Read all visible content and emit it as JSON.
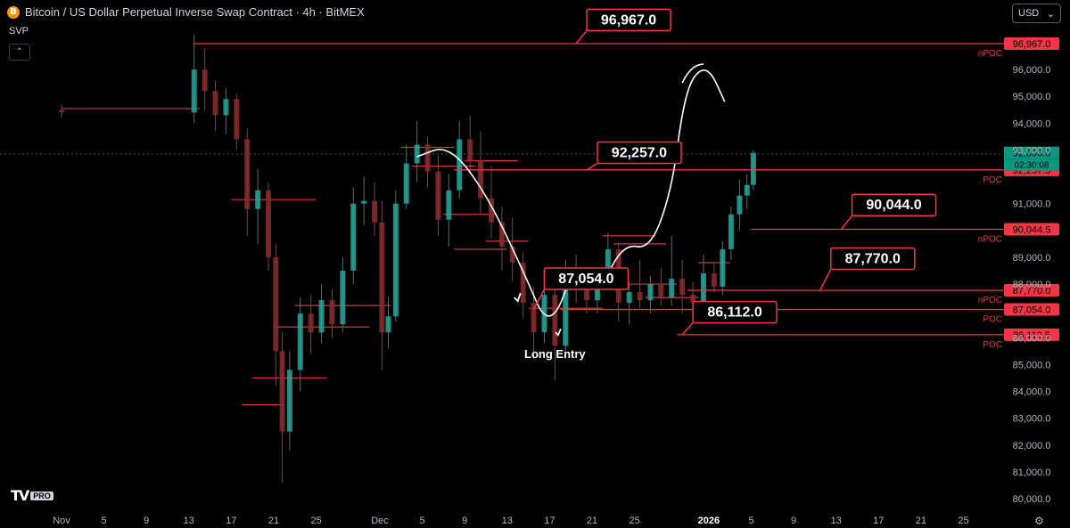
{
  "header": {
    "coin_symbol": "B",
    "title": "Bitcoin / US Dollar Perpetual Inverse Swap Contract · 4h · BitMEX",
    "indicator": "SVP",
    "collapse_icon": "chevron-up-icon",
    "currency": "USD",
    "currency_icon": "chevron-down-icon"
  },
  "logo": {
    "mark": "TV",
    "badge": "PRO"
  },
  "settings_icon": "gear-icon",
  "colors": {
    "background": "#000000",
    "level_line": "#f23645",
    "level_label_bg": "#f23645",
    "price_tag_bg": "#089981",
    "annotation": "#ffffff",
    "axis_text": "#b2b5be"
  },
  "chart_data": {
    "type": "candlestick",
    "symbol": "Bitcoin / US Dollar Perpetual Inverse Swap Contract",
    "timeframe": "4h",
    "exchange": "BitMEX",
    "ylim": [
      79700,
      97500
    ],
    "x_range_days": [
      0,
      88
    ],
    "yaxis_ticks": [
      "96,000.0",
      "95,000.0",
      "94,000.0",
      "93,000.0",
      "91,000.0",
      "89,000.0",
      "88,000.0",
      "86,000.0",
      "85,000.0",
      "84,000.0",
      "83,000.0",
      "82,000.0",
      "81,000.0",
      "80,000.0"
    ],
    "xaxis_ticks": [
      {
        "day": 0,
        "label": "Nov"
      },
      {
        "day": 4,
        "label": "5"
      },
      {
        "day": 8,
        "label": "9"
      },
      {
        "day": 12,
        "label": "13"
      },
      {
        "day": 16,
        "label": "17"
      },
      {
        "day": 20,
        "label": "21"
      },
      {
        "day": 24,
        "label": "25"
      },
      {
        "day": 30,
        "label": "Dec"
      },
      {
        "day": 34,
        "label": "5"
      },
      {
        "day": 38,
        "label": "9"
      },
      {
        "day": 42,
        "label": "13"
      },
      {
        "day": 46,
        "label": "17"
      },
      {
        "day": 50,
        "label": "21"
      },
      {
        "day": 54,
        "label": "25"
      },
      {
        "day": 61,
        "label": "2026"
      },
      {
        "day": 65,
        "label": "5"
      },
      {
        "day": 69,
        "label": "9"
      },
      {
        "day": 73,
        "label": "13"
      },
      {
        "day": 77,
        "label": "17"
      },
      {
        "day": 81,
        "label": "21"
      },
      {
        "day": 85,
        "label": "25"
      }
    ],
    "last_price": {
      "value": 92893.0,
      "label": "92,893.0",
      "countdown": "02:30:08"
    },
    "levels": [
      {
        "price": 96967.0,
        "label": "96,967.0",
        "tag": "nPOC",
        "callout": "96,967.0",
        "callout_day": 49.5,
        "callout_price": 97850,
        "from_day": 12.5
      },
      {
        "price": 92257.5,
        "label": "92,257.5",
        "tag": "POC",
        "callout": "92,257.0",
        "callout_day": 50.5,
        "callout_price": 92900,
        "from_day": 37
      },
      {
        "price": 90044.5,
        "label": "90,044.5",
        "tag": "nPOC",
        "callout": "90,044.0",
        "callout_day": 74.5,
        "callout_price": 90950,
        "from_day": 65
      },
      {
        "price": 87770.0,
        "label": "87,770.0",
        "tag": "nPOC",
        "callout": "87,770.0",
        "callout_day": 72.5,
        "callout_price": 88950,
        "from_day": 59
      },
      {
        "price": 87054.0,
        "label": "87,054.0",
        "tag": "POC",
        "callout": "87,054.0",
        "callout_day": 45.5,
        "callout_price": 88200,
        "from_day": 47
      },
      {
        "price": 86112.5,
        "label": "86,112.5",
        "tag": "POC",
        "callout": "86,112.0",
        "callout_day": 59.5,
        "callout_price": 86950,
        "from_day": 58
      }
    ],
    "annotation": {
      "text": "Long Entry",
      "day": 46.5,
      "price": 85250
    },
    "projected_path": [
      {
        "day": 33.5,
        "price": 92750
      },
      {
        "day": 36.5,
        "price": 93200
      },
      {
        "day": 40,
        "price": 91400
      },
      {
        "day": 43.5,
        "price": 88500
      },
      {
        "day": 46,
        "price": 86200
      },
      {
        "day": 48.5,
        "price": 88800
      },
      {
        "day": 51,
        "price": 88000
      },
      {
        "day": 53,
        "price": 89500
      },
      {
        "day": 55.5,
        "price": 89300
      },
      {
        "day": 57.5,
        "price": 91500
      },
      {
        "day": 58.5,
        "price": 94500
      },
      {
        "day": 59.5,
        "price": 95800
      },
      {
        "day": 61,
        "price": 96100
      },
      {
        "day": 62.5,
        "price": 94800
      }
    ],
    "projected_path_piece": [
      {
        "day": 58.5,
        "price": 95500
      },
      {
        "day": 60.5,
        "price": 96200
      }
    ],
    "svp_blocks": [
      {
        "from_day": 0,
        "to_day": 13,
        "price": 94550
      },
      {
        "from_day": 16,
        "to_day": 24,
        "price": 91150
      },
      {
        "from_day": 22,
        "to_day": 31,
        "price": 87200
      },
      {
        "from_day": 20,
        "to_day": 29,
        "price": 86400
      },
      {
        "from_day": 18,
        "to_day": 25,
        "price": 84500
      },
      {
        "from_day": 17,
        "to_day": 21,
        "price": 83500
      },
      {
        "from_day": 32,
        "to_day": 37,
        "price": 93100
      },
      {
        "from_day": 33,
        "to_day": 39,
        "price": 92400
      },
      {
        "from_day": 38,
        "to_day": 43,
        "price": 92600
      },
      {
        "from_day": 36,
        "to_day": 41,
        "price": 90600
      },
      {
        "from_day": 37,
        "to_day": 42,
        "price": 89300
      },
      {
        "from_day": 40,
        "to_day": 44,
        "price": 89600
      },
      {
        "from_day": 51,
        "to_day": 56,
        "price": 89800
      },
      {
        "from_day": 52,
        "to_day": 57,
        "price": 89500
      },
      {
        "from_day": 53,
        "to_day": 58,
        "price": 88000
      },
      {
        "from_day": 55,
        "to_day": 60,
        "price": 87500
      },
      {
        "from_day": 44,
        "to_day": 51,
        "price": 87100
      },
      {
        "from_day": 60,
        "to_day": 63,
        "price": 88800
      }
    ],
    "candles": [
      {
        "day": 0,
        "o": 94500,
        "h": 94700,
        "l": 94200,
        "c": 94400
      },
      {
        "day": 12.5,
        "o": 94400,
        "h": 97300,
        "l": 94000,
        "c": 96000
      },
      {
        "day": 13.5,
        "o": 96000,
        "h": 96800,
        "l": 94500,
        "c": 95200
      },
      {
        "day": 14.5,
        "o": 95200,
        "h": 95600,
        "l": 93700,
        "c": 94300
      },
      {
        "day": 15.5,
        "o": 94300,
        "h": 95300,
        "l": 93600,
        "c": 94900
      },
      {
        "day": 16.5,
        "o": 94900,
        "h": 95100,
        "l": 93000,
        "c": 93400
      },
      {
        "day": 17.5,
        "o": 93400,
        "h": 93800,
        "l": 89800,
        "c": 90800
      },
      {
        "day": 18.5,
        "o": 90800,
        "h": 92300,
        "l": 89500,
        "c": 91500
      },
      {
        "day": 19.5,
        "o": 91500,
        "h": 91800,
        "l": 88500,
        "c": 89000
      },
      {
        "day": 20.2,
        "o": 89000,
        "h": 89500,
        "l": 84200,
        "c": 85500
      },
      {
        "day": 20.8,
        "o": 85500,
        "h": 86200,
        "l": 80600,
        "c": 82500
      },
      {
        "day": 21.5,
        "o": 82500,
        "h": 85500,
        "l": 81800,
        "c": 84800
      },
      {
        "day": 22.5,
        "o": 84800,
        "h": 87500,
        "l": 84000,
        "c": 86900
      },
      {
        "day": 23.5,
        "o": 86900,
        "h": 87600,
        "l": 85400,
        "c": 86200
      },
      {
        "day": 24.5,
        "o": 86200,
        "h": 88000,
        "l": 85800,
        "c": 87400
      },
      {
        "day": 25.5,
        "o": 87400,
        "h": 87800,
        "l": 86000,
        "c": 86500
      },
      {
        "day": 26.5,
        "o": 86500,
        "h": 89000,
        "l": 86200,
        "c": 88500
      },
      {
        "day": 27.5,
        "o": 88500,
        "h": 91600,
        "l": 88000,
        "c": 91000
      },
      {
        "day": 28.5,
        "o": 91000,
        "h": 92000,
        "l": 90200,
        "c": 91100
      },
      {
        "day": 29.5,
        "o": 91100,
        "h": 91800,
        "l": 89800,
        "c": 90300
      },
      {
        "day": 30.2,
        "o": 90300,
        "h": 91100,
        "l": 84800,
        "c": 86200
      },
      {
        "day": 30.8,
        "o": 86200,
        "h": 87500,
        "l": 85600,
        "c": 86800
      },
      {
        "day": 31.5,
        "o": 86800,
        "h": 91500,
        "l": 86600,
        "c": 91000
      },
      {
        "day": 32.5,
        "o": 91000,
        "h": 93200,
        "l": 90800,
        "c": 92500
      },
      {
        "day": 33.5,
        "o": 92500,
        "h": 94100,
        "l": 91800,
        "c": 93200
      },
      {
        "day": 34.5,
        "o": 93200,
        "h": 93500,
        "l": 91600,
        "c": 92200
      },
      {
        "day": 35.5,
        "o": 92200,
        "h": 92800,
        "l": 89800,
        "c": 90400
      },
      {
        "day": 36.5,
        "o": 90400,
        "h": 92100,
        "l": 89400,
        "c": 91500
      },
      {
        "day": 37.5,
        "o": 91500,
        "h": 94100,
        "l": 91200,
        "c": 93400
      },
      {
        "day": 38.5,
        "o": 93400,
        "h": 94300,
        "l": 92100,
        "c": 92600
      },
      {
        "day": 39.5,
        "o": 92600,
        "h": 93700,
        "l": 90600,
        "c": 91200
      },
      {
        "day": 40.5,
        "o": 91200,
        "h": 92400,
        "l": 89700,
        "c": 90300
      },
      {
        "day": 41.5,
        "o": 90300,
        "h": 90900,
        "l": 88500,
        "c": 89400
      },
      {
        "day": 42.5,
        "o": 89400,
        "h": 90500,
        "l": 88100,
        "c": 88800
      },
      {
        "day": 43.5,
        "o": 88800,
        "h": 89200,
        "l": 86700,
        "c": 87300
      },
      {
        "day": 44.5,
        "o": 87300,
        "h": 87900,
        "l": 85200,
        "c": 86200
      },
      {
        "day": 45.5,
        "o": 86200,
        "h": 88200,
        "l": 85800,
        "c": 87600
      },
      {
        "day": 46.5,
        "o": 87600,
        "h": 88100,
        "l": 84400,
        "c": 85700
      },
      {
        "day": 47.5,
        "o": 85700,
        "h": 88900,
        "l": 85200,
        "c": 88300
      },
      {
        "day": 48.5,
        "o": 88300,
        "h": 89100,
        "l": 87300,
        "c": 88000
      },
      {
        "day": 49.5,
        "o": 88000,
        "h": 88600,
        "l": 86900,
        "c": 87400
      },
      {
        "day": 50.5,
        "o": 87400,
        "h": 88500,
        "l": 86900,
        "c": 88100
      },
      {
        "day": 51.5,
        "o": 88100,
        "h": 89900,
        "l": 87800,
        "c": 89300
      },
      {
        "day": 52.5,
        "o": 89300,
        "h": 89500,
        "l": 86600,
        "c": 87300
      },
      {
        "day": 53.5,
        "o": 87300,
        "h": 88100,
        "l": 86500,
        "c": 87700
      },
      {
        "day": 54.5,
        "o": 87700,
        "h": 88900,
        "l": 87100,
        "c": 87400
      },
      {
        "day": 55.5,
        "o": 87400,
        "h": 88300,
        "l": 86900,
        "c": 88000
      },
      {
        "day": 56.5,
        "o": 88000,
        "h": 88600,
        "l": 87200,
        "c": 87500
      },
      {
        "day": 57.5,
        "o": 87500,
        "h": 89800,
        "l": 87200,
        "c": 88200
      },
      {
        "day": 58.5,
        "o": 88200,
        "h": 88900,
        "l": 86900,
        "c": 87600
      },
      {
        "day": 59.5,
        "o": 87600,
        "h": 88100,
        "l": 86700,
        "c": 87300
      },
      {
        "day": 60.5,
        "o": 87300,
        "h": 89100,
        "l": 87000,
        "c": 88400
      },
      {
        "day": 61.5,
        "o": 88400,
        "h": 88800,
        "l": 87700,
        "c": 87900
      },
      {
        "day": 62.3,
        "o": 87900,
        "h": 89600,
        "l": 87600,
        "c": 89300
      },
      {
        "day": 63.1,
        "o": 89300,
        "h": 90900,
        "l": 88900,
        "c": 90600
      },
      {
        "day": 63.9,
        "o": 90600,
        "h": 91900,
        "l": 90000,
        "c": 91300
      },
      {
        "day": 64.6,
        "o": 91300,
        "h": 92100,
        "l": 90800,
        "c": 91700
      },
      {
        "day": 65.2,
        "o": 91700,
        "h": 93000,
        "l": 91500,
        "c": 92893
      }
    ]
  }
}
